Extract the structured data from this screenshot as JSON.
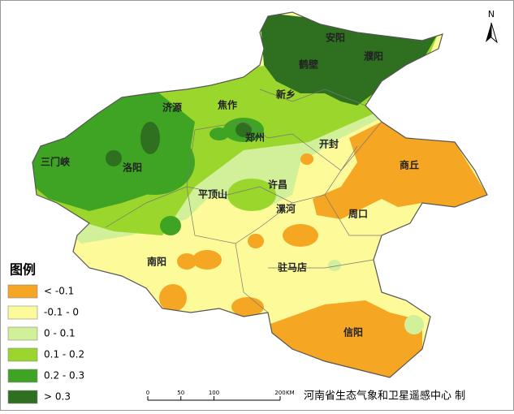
{
  "map": {
    "north_label": "N",
    "cities": [
      "安阳",
      "濮阳",
      "鹤壁",
      "新乡",
      "焦作",
      "济源",
      "郑州",
      "开封",
      "商丘",
      "三门峡",
      "洛阳",
      "许昌",
      "平顶山",
      "漯河",
      "周口",
      "南阳",
      "驻马店",
      "信阳"
    ],
    "legend": {
      "title": "图例",
      "items": [
        {
          "label": "< -0.1",
          "color": "#f5a623"
        },
        {
          "label": "-0.1 - 0",
          "color": "#fdfa9a"
        },
        {
          "label": "0 - 0.1",
          "color": "#d2f09a"
        },
        {
          "label": "0.1 - 0.2",
          "color": "#9ad62c"
        },
        {
          "label": "0.2 - 0.3",
          "color": "#3fa424"
        },
        {
          "label": "> 0.3",
          "color": "#2e7020"
        }
      ]
    },
    "scale_bar": {
      "ticks": [
        0,
        50,
        100,
        200
      ],
      "unit": "KM"
    },
    "credit": "河南省生态气象和卫星遥感中心 制"
  }
}
